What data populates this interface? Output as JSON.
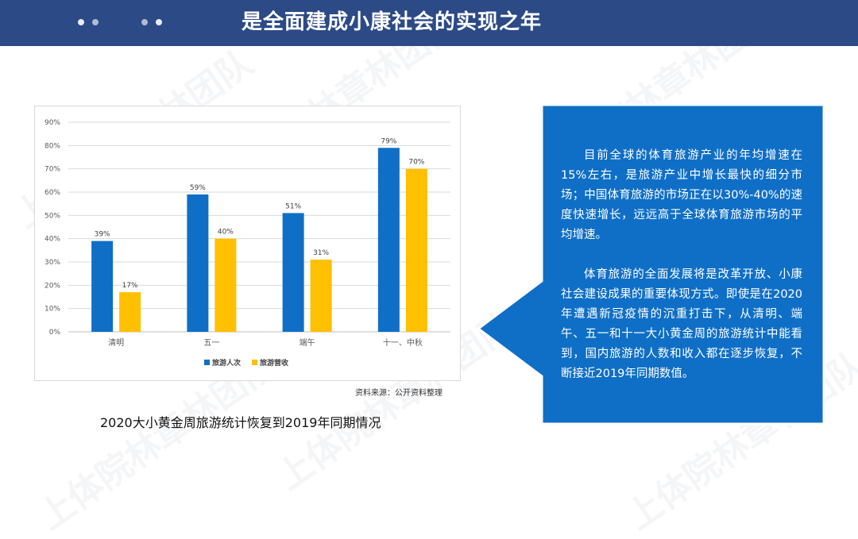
{
  "header": {
    "title": "是全面建成小康社会的实现之年"
  },
  "chart_data": {
    "type": "bar",
    "categories": [
      "清明",
      "五一",
      "端午",
      "十一、中秋"
    ],
    "series": [
      {
        "name": "旅游人次",
        "values": [
          39,
          59,
          51,
          79
        ],
        "labels": [
          "39%",
          "59%",
          "51%",
          "79%"
        ]
      },
      {
        "name": "旅游营收",
        "values": [
          17,
          40,
          31,
          70
        ],
        "labels": [
          "17%",
          "40%",
          "31%",
          "70%"
        ]
      }
    ],
    "ylim": [
      0,
      90
    ],
    "yticks": [
      "0%",
      "10%",
      "20%",
      "30%",
      "40%",
      "50%",
      "60%",
      "70%",
      "80%",
      "90%"
    ],
    "grid": true,
    "legend": "bottom",
    "colors": [
      "#0f6fc6",
      "#ffc000"
    ]
  },
  "source_note": "资料来源：公开资料整理",
  "caption": "2020大小黄金周旅游统计恢复到2019年同期情况",
  "callout": {
    "paragraph1": "目前全球的体育旅游产业的年均增速在15%左右，是旅游产业中增长最快的细分市场；中国体育旅游的市场正在以30%-40%的速度快速增长，远远高于全球体育旅游市场的平均增速。",
    "paragraph2": "体育旅游的全面发展将是改革开放、小康社会建设成果的重要体现方式。即使是在2020年遭遇新冠疫情的沉重打击下，从清明、端午、五一和十一大小黄金周的旅游统计中能看到，国内旅游的人数和收入都在逐步恢复，不断接近2019年同期数值。",
    "color": "#0f6fc6"
  },
  "watermark": "上体院林章林团队"
}
